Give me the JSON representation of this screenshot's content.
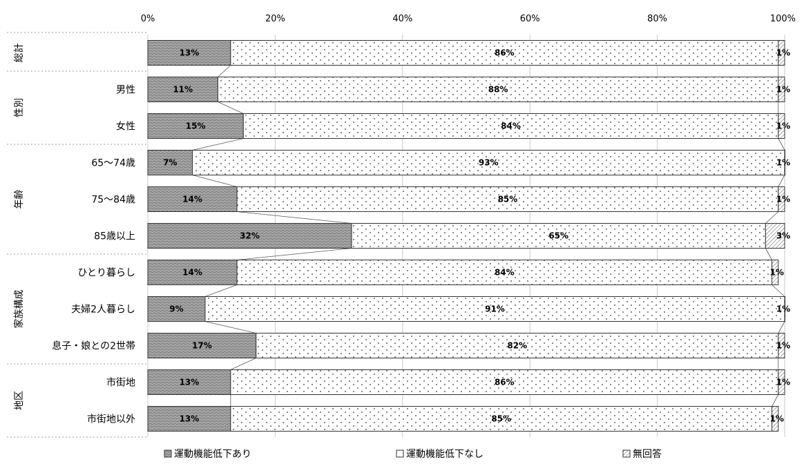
{
  "chart_data": {
    "type": "bar",
    "orientation": "horizontal",
    "stacked": "percent",
    "x_ticks": [
      "0%",
      "20%",
      "40%",
      "60%",
      "80%",
      "100%"
    ],
    "xlim": [
      0,
      100
    ],
    "grid": true,
    "legend_position": "bottom",
    "groups": [
      {
        "label": "総計",
        "rows": [
          ""
        ]
      },
      {
        "label": "性別",
        "rows": [
          "男性",
          "女性"
        ]
      },
      {
        "label": "年齢",
        "rows": [
          "65～74歳",
          "75～84歳",
          "85歳以上"
        ]
      },
      {
        "label": "家族構成",
        "rows": [
          "ひとり暮らし",
          "夫婦2人暮らし",
          "息子・娘との2世帯"
        ]
      },
      {
        "label": "地区",
        "rows": [
          "市街地",
          "市街地以外"
        ]
      }
    ],
    "categories": [
      "",
      "男性",
      "女性",
      "65～74歳",
      "75～84歳",
      "85歳以上",
      "ひとり暮らし",
      "夫婦2人暮らし",
      "息子・娘との2世帯",
      "市街地",
      "市街地以外"
    ],
    "series": [
      {
        "name": "運動機能低下あり",
        "values": [
          13,
          11,
          15,
          7,
          14,
          32,
          14,
          9,
          17,
          13,
          13
        ],
        "labels": [
          "13%",
          "11%",
          "15%",
          "7%",
          "14%",
          "32%",
          "14%",
          "9%",
          "17%",
          "13%",
          "13%"
        ],
        "color": "#9a9a9a",
        "pattern": "wave"
      },
      {
        "name": "運動機能低下なし",
        "values": [
          86,
          88,
          84,
          93,
          85,
          65,
          84,
          91,
          82,
          86,
          85
        ],
        "labels": [
          "86%",
          "88%",
          "84%",
          "93%",
          "85%",
          "65%",
          "84%",
          "91%",
          "82%",
          "86%",
          "85%"
        ],
        "color": "#ffffff",
        "pattern": "dots"
      },
      {
        "name": "無回答",
        "values": [
          1,
          1,
          1,
          1,
          1,
          3,
          1,
          1,
          1,
          1,
          1
        ],
        "labels": [
          "1%",
          "1%",
          "1%",
          "1%",
          "1%",
          "3%",
          "1%",
          "1%",
          "1%",
          "1%",
          "1%"
        ],
        "color": "#ffffff",
        "pattern": "hatch"
      }
    ]
  }
}
